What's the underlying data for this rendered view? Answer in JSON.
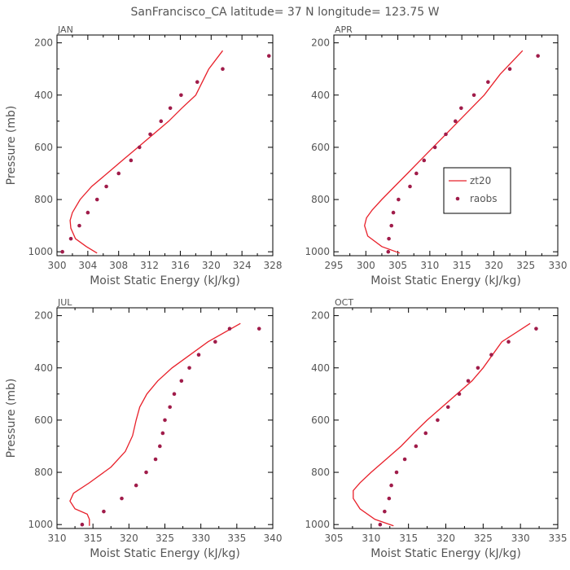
{
  "figure": {
    "title": "SanFrancisco_CA  latitude= 37 N longitude= 123.75 W",
    "model_color": "#e8202a",
    "obs_color": "#a01c4a"
  },
  "chart_data": [
    {
      "type": "line",
      "panel": "JAN",
      "xlabel": "Moist Static Energy (kJ/kg)",
      "ylabel": "Pressure (mb)",
      "xlim": [
        300,
        328
      ],
      "xticks": [
        300,
        304,
        308,
        312,
        316,
        320,
        324,
        328
      ],
      "ylim": [
        1000,
        200
      ],
      "yticks": [
        200,
        400,
        600,
        800,
        1000
      ],
      "legend": null,
      "series": [
        {
          "name": "zt20",
          "style": "line",
          "x": [
            305.2,
            303.8,
            302.4,
            301.8,
            301.7,
            302.0,
            303.0,
            304.5,
            306.5,
            308.5,
            310.5,
            312.5,
            314.5,
            316.2,
            318.0,
            319.7,
            321.5
          ],
          "y": [
            1005,
            980,
            950,
            910,
            880,
            850,
            800,
            750,
            700,
            650,
            600,
            550,
            500,
            450,
            400,
            300,
            230
          ]
        },
        {
          "name": "raobs",
          "style": "marker",
          "x": [
            300.7,
            301.8,
            302.9,
            304.0,
            305.2,
            306.4,
            308.0,
            309.6,
            310.7,
            312.1,
            313.5,
            314.7,
            316.1,
            318.2,
            321.5,
            327.5
          ],
          "y": [
            1000,
            950,
            900,
            850,
            800,
            750,
            700,
            650,
            600,
            550,
            500,
            450,
            400,
            350,
            300,
            250
          ]
        }
      ]
    },
    {
      "type": "line",
      "panel": "APR",
      "xlabel": "Moist Static Energy (kJ/kg)",
      "ylabel": "",
      "xlim": [
        295,
        330
      ],
      "xticks": [
        295,
        300,
        305,
        310,
        315,
        320,
        325,
        330
      ],
      "ylim": [
        1000,
        200
      ],
      "yticks": [
        200,
        400,
        600,
        800,
        1000
      ],
      "legend": {
        "position": "center-right",
        "entries": [
          "zt20",
          "raobs"
        ]
      },
      "series": [
        {
          "name": "zt20",
          "style": "line",
          "x": [
            305.3,
            302.5,
            300.3,
            299.8,
            300.1,
            301.0,
            302.5,
            304.5,
            306.5,
            308.5,
            310.5,
            312.5,
            314.5,
            316.5,
            318.5,
            321.0,
            324.5
          ],
          "y": [
            1005,
            980,
            940,
            900,
            870,
            840,
            800,
            750,
            700,
            650,
            600,
            550,
            500,
            450,
            400,
            320,
            230
          ]
        },
        {
          "name": "raobs",
          "style": "marker",
          "x": [
            303.5,
            303.6,
            304.0,
            304.3,
            305.1,
            306.9,
            307.9,
            309.1,
            310.8,
            312.5,
            314.0,
            314.9,
            316.9,
            319.1,
            322.5,
            326.9
          ],
          "y": [
            1000,
            950,
            900,
            850,
            800,
            750,
            700,
            650,
            600,
            550,
            500,
            450,
            400,
            350,
            300,
            250
          ]
        }
      ]
    },
    {
      "type": "line",
      "panel": "JUL",
      "xlabel": "Moist Static Energy (kJ/kg)",
      "ylabel": "Pressure (mb)",
      "xlim": [
        310,
        340
      ],
      "xticks": [
        310,
        315,
        320,
        325,
        330,
        335,
        340
      ],
      "ylim": [
        1000,
        200
      ],
      "yticks": [
        200,
        400,
        600,
        800,
        1000
      ],
      "legend": null,
      "series": [
        {
          "name": "zt20",
          "style": "line",
          "x": [
            314.5,
            314.5,
            314.2,
            312.5,
            311.8,
            312.3,
            314.5,
            317.5,
            319.5,
            320.5,
            321.0,
            321.5,
            322.5,
            324.0,
            326.0,
            331.0,
            335.5
          ],
          "y": [
            1005,
            980,
            960,
            940,
            910,
            880,
            840,
            780,
            720,
            660,
            600,
            550,
            500,
            450,
            400,
            300,
            230
          ]
        },
        {
          "name": "raobs",
          "style": "marker",
          "x": [
            313.5,
            316.5,
            319.0,
            321.0,
            322.4,
            323.7,
            324.3,
            324.7,
            325.0,
            325.7,
            326.3,
            327.3,
            328.4,
            329.7,
            332.0,
            334.0,
            338.1
          ],
          "y": [
            1000,
            950,
            900,
            850,
            800,
            750,
            700,
            650,
            600,
            550,
            500,
            450,
            400,
            350,
            300,
            250,
            250
          ]
        }
      ]
    },
    {
      "type": "line",
      "panel": "OCT",
      "xlabel": "Moist Static Energy (kJ/kg)",
      "ylabel": "",
      "xlim": [
        305,
        335
      ],
      "xticks": [
        305,
        310,
        315,
        320,
        325,
        330,
        335
      ],
      "ylim": [
        1000,
        200
      ],
      "yticks": [
        200,
        400,
        600,
        800,
        1000
      ],
      "legend": null,
      "series": [
        {
          "name": "zt20",
          "style": "line",
          "x": [
            313.0,
            310.5,
            308.5,
            307.6,
            307.6,
            308.5,
            310.0,
            312.0,
            314.0,
            315.7,
            317.5,
            319.5,
            321.5,
            323.5,
            325.0,
            327.5,
            331.3
          ],
          "y": [
            1005,
            980,
            940,
            900,
            870,
            840,
            800,
            750,
            700,
            650,
            600,
            550,
            500,
            450,
            400,
            300,
            230
          ]
        },
        {
          "name": "raobs",
          "style": "marker",
          "x": [
            311.2,
            311.8,
            312.4,
            312.7,
            313.4,
            314.5,
            316.0,
            317.3,
            318.9,
            320.3,
            321.8,
            323.0,
            324.3,
            326.1,
            328.4,
            332.1
          ],
          "y": [
            1000,
            950,
            900,
            850,
            800,
            750,
            700,
            650,
            600,
            550,
            500,
            450,
            400,
            350,
            300,
            250
          ]
        }
      ]
    }
  ]
}
